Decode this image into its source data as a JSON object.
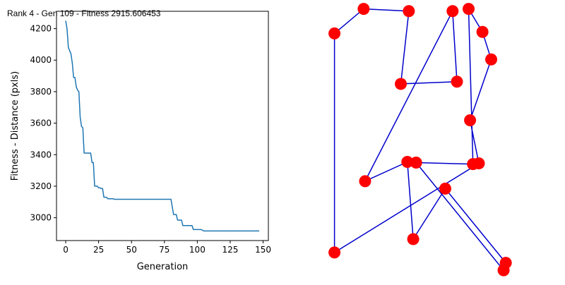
{
  "title": "Rank 4 - Gen 109 - Fitness 2915.606453",
  "chart_data": [
    {
      "type": "line",
      "xlabel": "Generation",
      "ylabel": "Fitness - Distance (pxls)",
      "xlim": [
        -7,
        154
      ],
      "ylim": [
        2855,
        4310
      ],
      "xticks": [
        0,
        25,
        50,
        75,
        100,
        125,
        150
      ],
      "yticks": [
        3000,
        3200,
        3400,
        3600,
        3800,
        4000,
        4200
      ],
      "grid": false,
      "line_color": "#1f77b4",
      "series": [
        {
          "x": [
            0,
            1,
            2,
            3,
            4,
            5,
            6,
            7,
            8,
            9,
            10,
            11,
            12,
            13,
            14,
            15,
            16,
            17,
            18,
            19,
            20,
            21,
            22,
            23,
            24,
            25,
            26,
            27,
            28,
            29,
            30,
            31,
            32,
            33,
            34,
            35,
            36,
            37,
            38,
            39,
            40,
            41,
            42,
            43,
            44,
            45,
            46,
            47,
            48,
            49,
            50,
            55,
            60,
            65,
            70,
            75,
            80,
            82,
            83,
            84,
            85,
            86,
            87,
            88,
            89,
            90,
            91,
            92,
            93,
            94,
            95,
            96,
            97,
            98,
            99,
            100,
            101,
            102,
            103,
            104,
            105,
            110,
            115,
            120,
            125,
            130,
            135,
            140,
            145,
            147
          ],
          "y": [
            4250,
            4200,
            4080,
            4060,
            4040,
            3980,
            3890,
            3890,
            3830,
            3810,
            3800,
            3640,
            3580,
            3570,
            3410,
            3410,
            3410,
            3410,
            3410,
            3410,
            3350,
            3350,
            3200,
            3200,
            3200,
            3190,
            3190,
            3185,
            3185,
            3130,
            3130,
            3130,
            3120,
            3120,
            3120,
            3120,
            3120,
            3117,
            3117,
            3117,
            3117,
            3117,
            3117,
            3117,
            3117,
            3117,
            3117,
            3117,
            3117,
            3117,
            3117,
            3117,
            3117,
            3117,
            3117,
            3117,
            3117,
            3020,
            3020,
            3020,
            2985,
            2985,
            2985,
            2985,
            2950,
            2950,
            2950,
            2950,
            2950,
            2950,
            2950,
            2950,
            2925,
            2925,
            2925,
            2925,
            2925,
            2925,
            2925,
            2920,
            2916,
            2916,
            2916,
            2916,
            2916,
            2916,
            2916,
            2916,
            2916,
            2916
          ]
        }
      ]
    },
    {
      "type": "scatter",
      "title": "",
      "xlabel": "",
      "ylabel": "",
      "axes_visible": false,
      "xlim": [
        0,
        310
      ],
      "ylim": [
        0,
        380
      ],
      "point_color": "#ff0000",
      "path_color": "#0000cc",
      "points": [
        {
          "x": 18,
          "y": 335
        },
        {
          "x": 58,
          "y": 368
        },
        {
          "x": 120,
          "y": 365
        },
        {
          "x": 202,
          "y": 368
        },
        {
          "x": 221,
          "y": 337
        },
        {
          "x": 233,
          "y": 300
        },
        {
          "x": 204,
          "y": 218
        },
        {
          "x": 216,
          "y": 160
        },
        {
          "x": 250,
          "y": 16
        },
        {
          "x": 253,
          "y": 26
        },
        {
          "x": 208,
          "y": 159
        },
        {
          "x": 126,
          "y": 58
        },
        {
          "x": 60,
          "y": 136
        },
        {
          "x": 18,
          "y": 40
        },
        {
          "x": 118,
          "y": 162
        },
        {
          "x": 170,
          "y": 126
        },
        {
          "x": 130,
          "y": 161
        },
        {
          "x": 180,
          "y": 365
        },
        {
          "x": 186,
          "y": 270
        },
        {
          "x": 109,
          "y": 267
        }
      ],
      "path_order": [
        13,
        0,
        1,
        2,
        19,
        18,
        17,
        12,
        14,
        11,
        15,
        9,
        8,
        16,
        10,
        3,
        4,
        5,
        6,
        7,
        13
      ]
    }
  ]
}
